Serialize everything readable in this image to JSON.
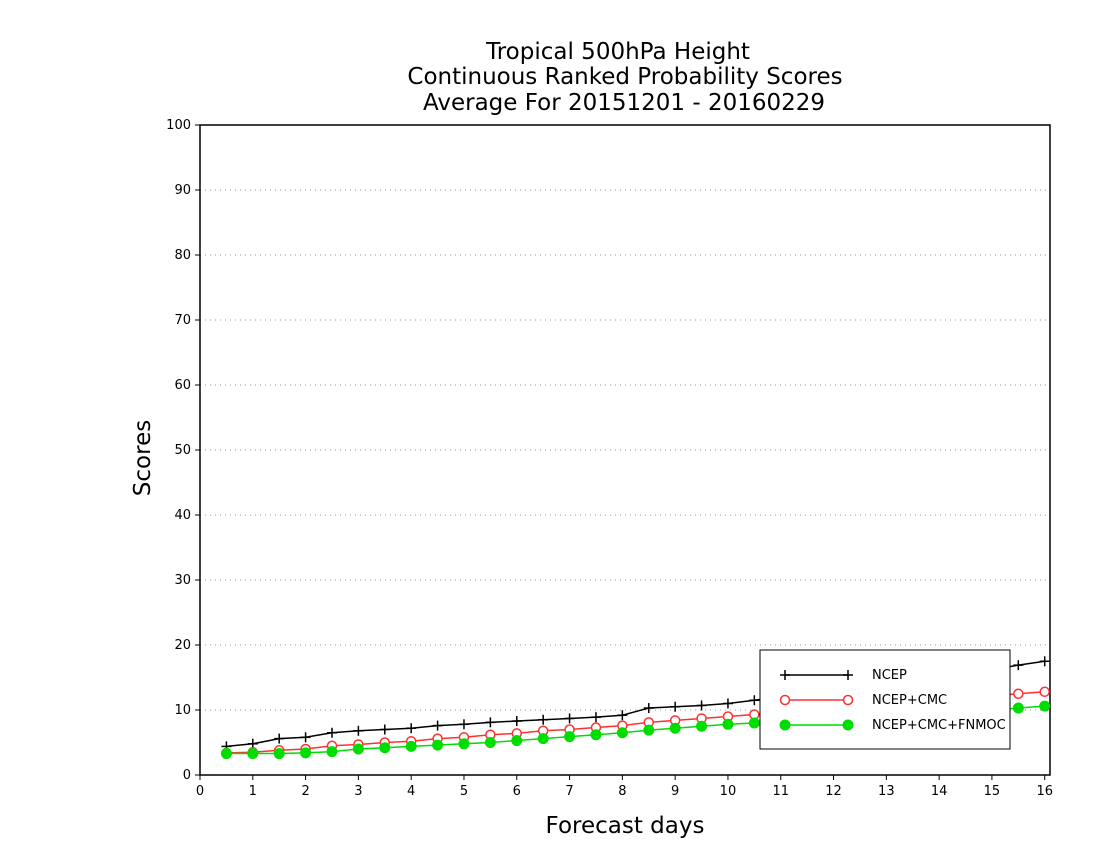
{
  "chart_data": {
    "type": "line",
    "title_lines": [
      "Tropical 500hPa Height",
      "Continuous Ranked Probability Scores",
      "Average For 20151201 - 20160229"
    ],
    "xlabel": "Forecast days",
    "ylabel": "Scores",
    "xlim": [
      0,
      16.1
    ],
    "ylim": [
      0,
      100
    ],
    "xticks": [
      0,
      1,
      2,
      3,
      4,
      5,
      6,
      7,
      8,
      9,
      10,
      11,
      12,
      13,
      14,
      15,
      16
    ],
    "yticks": [
      0,
      10,
      20,
      30,
      40,
      50,
      60,
      70,
      80,
      90,
      100
    ],
    "grid": "horizontal dotted",
    "legend_position": "bottom-right",
    "x": [
      0.5,
      1,
      1.5,
      2,
      2.5,
      3,
      3.5,
      4,
      4.5,
      5,
      5.5,
      6,
      6.5,
      7,
      7.5,
      8,
      8.5,
      9,
      9.5,
      10,
      10.5,
      11,
      11.5,
      12,
      12.5,
      13,
      13.5,
      14,
      14.5,
      15,
      15.5,
      16
    ],
    "series": [
      {
        "name": "NCEP",
        "color": "#000000",
        "marker": "plus",
        "values": [
          4.4,
          4.8,
          5.6,
          5.8,
          6.5,
          6.8,
          7.0,
          7.2,
          7.6,
          7.8,
          8.1,
          8.3,
          8.5,
          8.7,
          8.9,
          9.2,
          10.3,
          10.5,
          10.7,
          11.0,
          11.5,
          12.0,
          12.5,
          13.0,
          13.5,
          14.0,
          14.5,
          15.0,
          15.5,
          16.2,
          16.9,
          17.5
        ]
      },
      {
        "name": "NCEP+CMC",
        "color": "#ff3030",
        "marker": "open-circle",
        "values": [
          3.4,
          3.5,
          3.8,
          4.0,
          4.5,
          4.7,
          5.0,
          5.2,
          5.6,
          5.8,
          6.2,
          6.4,
          6.8,
          7.0,
          7.3,
          7.6,
          8.1,
          8.4,
          8.7,
          9.0,
          9.3,
          9.7,
          10.0,
          10.4,
          10.7,
          11.0,
          11.3,
          11.6,
          11.9,
          12.2,
          12.5,
          12.8
        ]
      },
      {
        "name": "NCEP+CMC+FNMOC",
        "color": "#00dd00",
        "marker": "filled-circle",
        "values": [
          3.3,
          3.3,
          3.3,
          3.4,
          3.6,
          4.0,
          4.2,
          4.4,
          4.6,
          4.8,
          5.0,
          5.3,
          5.6,
          5.9,
          6.2,
          6.5,
          6.9,
          7.2,
          7.5,
          7.8,
          8.0,
          8.3,
          8.5,
          8.8,
          9.0,
          9.2,
          9.4,
          9.6,
          9.8,
          10.0,
          10.3,
          10.6
        ]
      }
    ]
  }
}
